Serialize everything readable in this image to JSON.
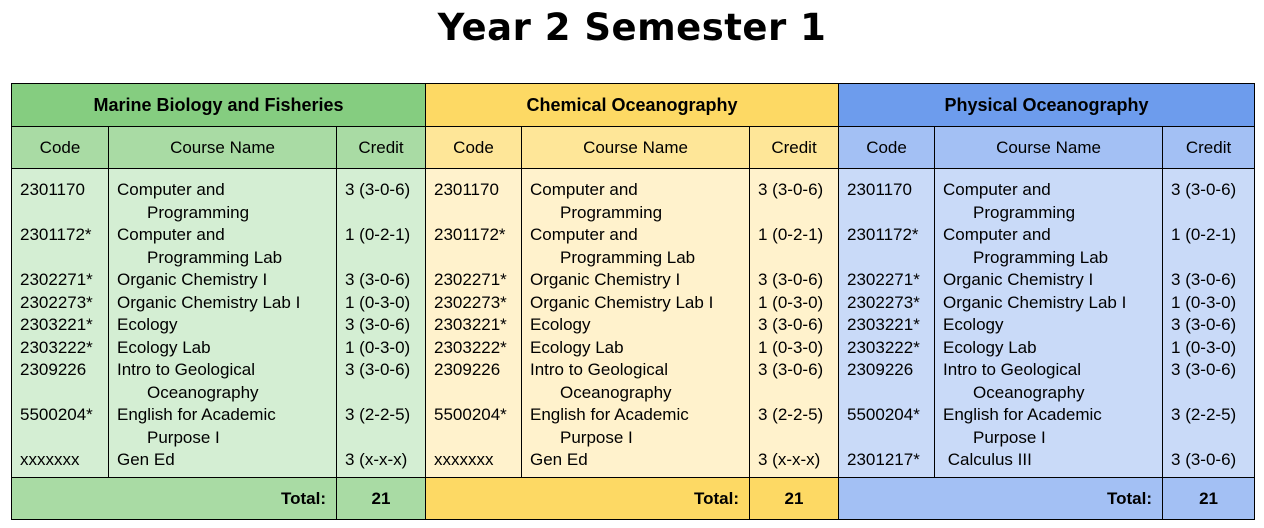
{
  "title": "Year 2 Semester 1",
  "columns": {
    "code": "Code",
    "name": "Course Name",
    "credit": "Credit"
  },
  "total_label": "Total:",
  "colors": {
    "marine_header": "#85cd80",
    "marine_subheader": "#a9dba4",
    "marine_body": "#d4eed3",
    "chemical_header": "#fdd964",
    "chemical_subheader": "#fee698",
    "chemical_body": "#fff2cc",
    "physical_header": "#6d9ced",
    "physical_subheader": "#a3c0f4",
    "physical_body": "#c9daf8"
  },
  "programs": [
    {
      "name": "Marine Biology and Fisheries",
      "total": "21",
      "courses": [
        {
          "code": "2301170",
          "name": [
            "Computer and",
            "Programming"
          ],
          "credit": "3 (3-0-6)"
        },
        {
          "code": "2301172*",
          "name": [
            "Computer and",
            "Programming Lab"
          ],
          "credit": "1 (0-2-1)"
        },
        {
          "code": "2302271*",
          "name": [
            "Organic Chemistry I"
          ],
          "credit": "3 (3-0-6)"
        },
        {
          "code": "2302273*",
          "name": [
            "Organic Chemistry Lab I"
          ],
          "credit": "1 (0-3-0)"
        },
        {
          "code": "2303221*",
          "name": [
            "Ecology"
          ],
          "credit": "3 (3-0-6)"
        },
        {
          "code": "2303222*",
          "name": [
            "Ecology Lab"
          ],
          "credit": "1 (0-3-0)"
        },
        {
          "code": "2309226",
          "name": [
            "Intro to Geological",
            "Oceanography"
          ],
          "credit": "3 (3-0-6)"
        },
        {
          "code": "5500204*",
          "name": [
            "English for Academic",
            "Purpose I"
          ],
          "credit": "3 (2-2-5)"
        },
        {
          "code": "xxxxxxx",
          "name": [
            "Gen Ed"
          ],
          "credit": "3 (x-x-x)"
        }
      ]
    },
    {
      "name": "Chemical Oceanography",
      "total": "21",
      "courses": [
        {
          "code": "2301170",
          "name": [
            "Computer and",
            "Programming"
          ],
          "credit": "3 (3-0-6)"
        },
        {
          "code": "2301172*",
          "name": [
            "Computer and",
            "Programming Lab"
          ],
          "credit": "1 (0-2-1)"
        },
        {
          "code": "2302271*",
          "name": [
            "Organic Chemistry I"
          ],
          "credit": "3 (3-0-6)"
        },
        {
          "code": "2302273*",
          "name": [
            "Organic Chemistry Lab I"
          ],
          "credit": "1 (0-3-0)"
        },
        {
          "code": "2303221*",
          "name": [
            "Ecology"
          ],
          "credit": "3 (3-0-6)"
        },
        {
          "code": "2303222*",
          "name": [
            "Ecology Lab"
          ],
          "credit": "1 (0-3-0)"
        },
        {
          "code": "2309226",
          "name": [
            "Intro to Geological",
            "Oceanography"
          ],
          "credit": "3 (3-0-6)"
        },
        {
          "code": "5500204*",
          "name": [
            "English for Academic",
            "Purpose I"
          ],
          "credit": "3 (2-2-5)"
        },
        {
          "code": "xxxxxxx",
          "name": [
            "Gen Ed"
          ],
          "credit": "3 (x-x-x)"
        }
      ]
    },
    {
      "name": "Physical Oceanography",
      "total": "21",
      "courses": [
        {
          "code": "2301170",
          "name": [
            "Computer and",
            "Programming"
          ],
          "credit": "3 (3-0-6)"
        },
        {
          "code": "2301172*",
          "name": [
            "Computer and",
            "Programming Lab"
          ],
          "credit": "1 (0-2-1)"
        },
        {
          "code": "2302271*",
          "name": [
            "Organic Chemistry I"
          ],
          "credit": "3 (3-0-6)"
        },
        {
          "code": "2302273*",
          "name": [
            "Organic Chemistry Lab I"
          ],
          "credit": "1 (0-3-0)"
        },
        {
          "code": "2303221*",
          "name": [
            "Ecology"
          ],
          "credit": "3 (3-0-6)"
        },
        {
          "code": "2303222*",
          "name": [
            "Ecology Lab"
          ],
          "credit": "1 (0-3-0)"
        },
        {
          "code": "2309226",
          "name": [
            "Intro to Geological",
            "Oceanography"
          ],
          "credit": "3 (3-0-6)"
        },
        {
          "code": "5500204*",
          "name": [
            "English for Academic",
            "Purpose I"
          ],
          "credit": "3 (2-2-5)"
        },
        {
          "code": "2301217*",
          "name": [
            " Calculus III"
          ],
          "credit": "3 (3-0-6)"
        }
      ]
    }
  ]
}
